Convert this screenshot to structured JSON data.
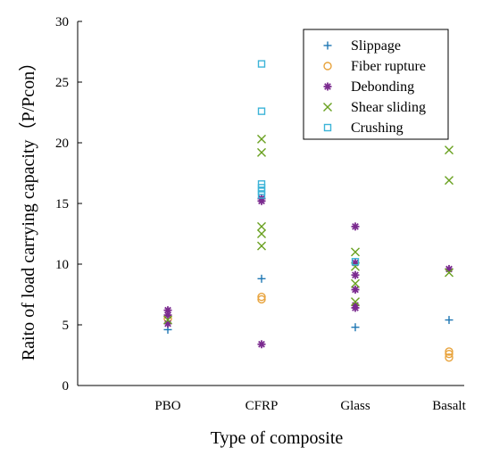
{
  "chart_data": {
    "type": "scatter",
    "xlabel": "Type of composite",
    "ylabel": "Raito of load carrying capacity（P/Pcon）",
    "categories": [
      "PBO",
      "CFRP",
      "Glass",
      "Basalt"
    ],
    "ylim": [
      0,
      30
    ],
    "yticks": [
      0,
      5,
      10,
      15,
      20,
      25,
      30
    ],
    "grid": false,
    "legend_position": "top-right",
    "series": [
      {
        "name": "Slippage",
        "marker": "plus",
        "color": "#1f77b4",
        "points": [
          {
            "category": "PBO",
            "y": 4.6
          },
          {
            "category": "CFRP",
            "y": 8.8
          },
          {
            "category": "Glass",
            "y": 4.8
          },
          {
            "category": "Basalt",
            "y": 5.4
          }
        ]
      },
      {
        "name": "Fiber rupture",
        "marker": "circle",
        "color": "#e8a33c",
        "points": [
          {
            "category": "PBO",
            "y": 5.5
          },
          {
            "category": "CFRP",
            "y": 7.1
          },
          {
            "category": "CFRP",
            "y": 7.3
          },
          {
            "category": "Basalt",
            "y": 2.3
          },
          {
            "category": "Basalt",
            "y": 2.6
          },
          {
            "category": "Basalt",
            "y": 2.8
          }
        ]
      },
      {
        "name": "Debonding",
        "marker": "asterisk",
        "color": "#7b2b8f",
        "points": [
          {
            "category": "PBO",
            "y": 6.2
          },
          {
            "category": "PBO",
            "y": 5.8
          },
          {
            "category": "PBO",
            "y": 5.1
          },
          {
            "category": "CFRP",
            "y": 15.2
          },
          {
            "category": "CFRP",
            "y": 15.4
          },
          {
            "category": "CFRP",
            "y": 3.4
          },
          {
            "category": "Glass",
            "y": 13.1
          },
          {
            "category": "Glass",
            "y": 10.1
          },
          {
            "category": "Glass",
            "y": 9.1
          },
          {
            "category": "Glass",
            "y": 7.9
          },
          {
            "category": "Glass",
            "y": 6.6
          },
          {
            "category": "Glass",
            "y": 6.4
          },
          {
            "category": "Basalt",
            "y": 9.6
          }
        ]
      },
      {
        "name": "Shear sliding",
        "marker": "x",
        "color": "#6aa121",
        "points": [
          {
            "category": "PBO",
            "y": 5.4
          },
          {
            "category": "CFRP",
            "y": 20.3
          },
          {
            "category": "CFRP",
            "y": 19.2
          },
          {
            "category": "CFRP",
            "y": 13.1
          },
          {
            "category": "CFRP",
            "y": 12.5
          },
          {
            "category": "CFRP",
            "y": 11.5
          },
          {
            "category": "Glass",
            "y": 11.0
          },
          {
            "category": "Glass",
            "y": 9.8
          },
          {
            "category": "Glass",
            "y": 8.4
          },
          {
            "category": "Glass",
            "y": 6.9
          },
          {
            "category": "Basalt",
            "y": 19.4
          },
          {
            "category": "Basalt",
            "y": 16.9
          },
          {
            "category": "Basalt",
            "y": 9.3
          }
        ]
      },
      {
        "name": "Crushing",
        "marker": "square",
        "color": "#3cb4d8",
        "points": [
          {
            "category": "CFRP",
            "y": 26.5
          },
          {
            "category": "CFRP",
            "y": 22.6
          },
          {
            "category": "CFRP",
            "y": 16.6
          },
          {
            "category": "CFRP",
            "y": 16.3
          },
          {
            "category": "CFRP",
            "y": 16.0
          },
          {
            "category": "CFRP",
            "y": 15.7
          },
          {
            "category": "Glass",
            "y": 10.2
          }
        ]
      }
    ]
  }
}
